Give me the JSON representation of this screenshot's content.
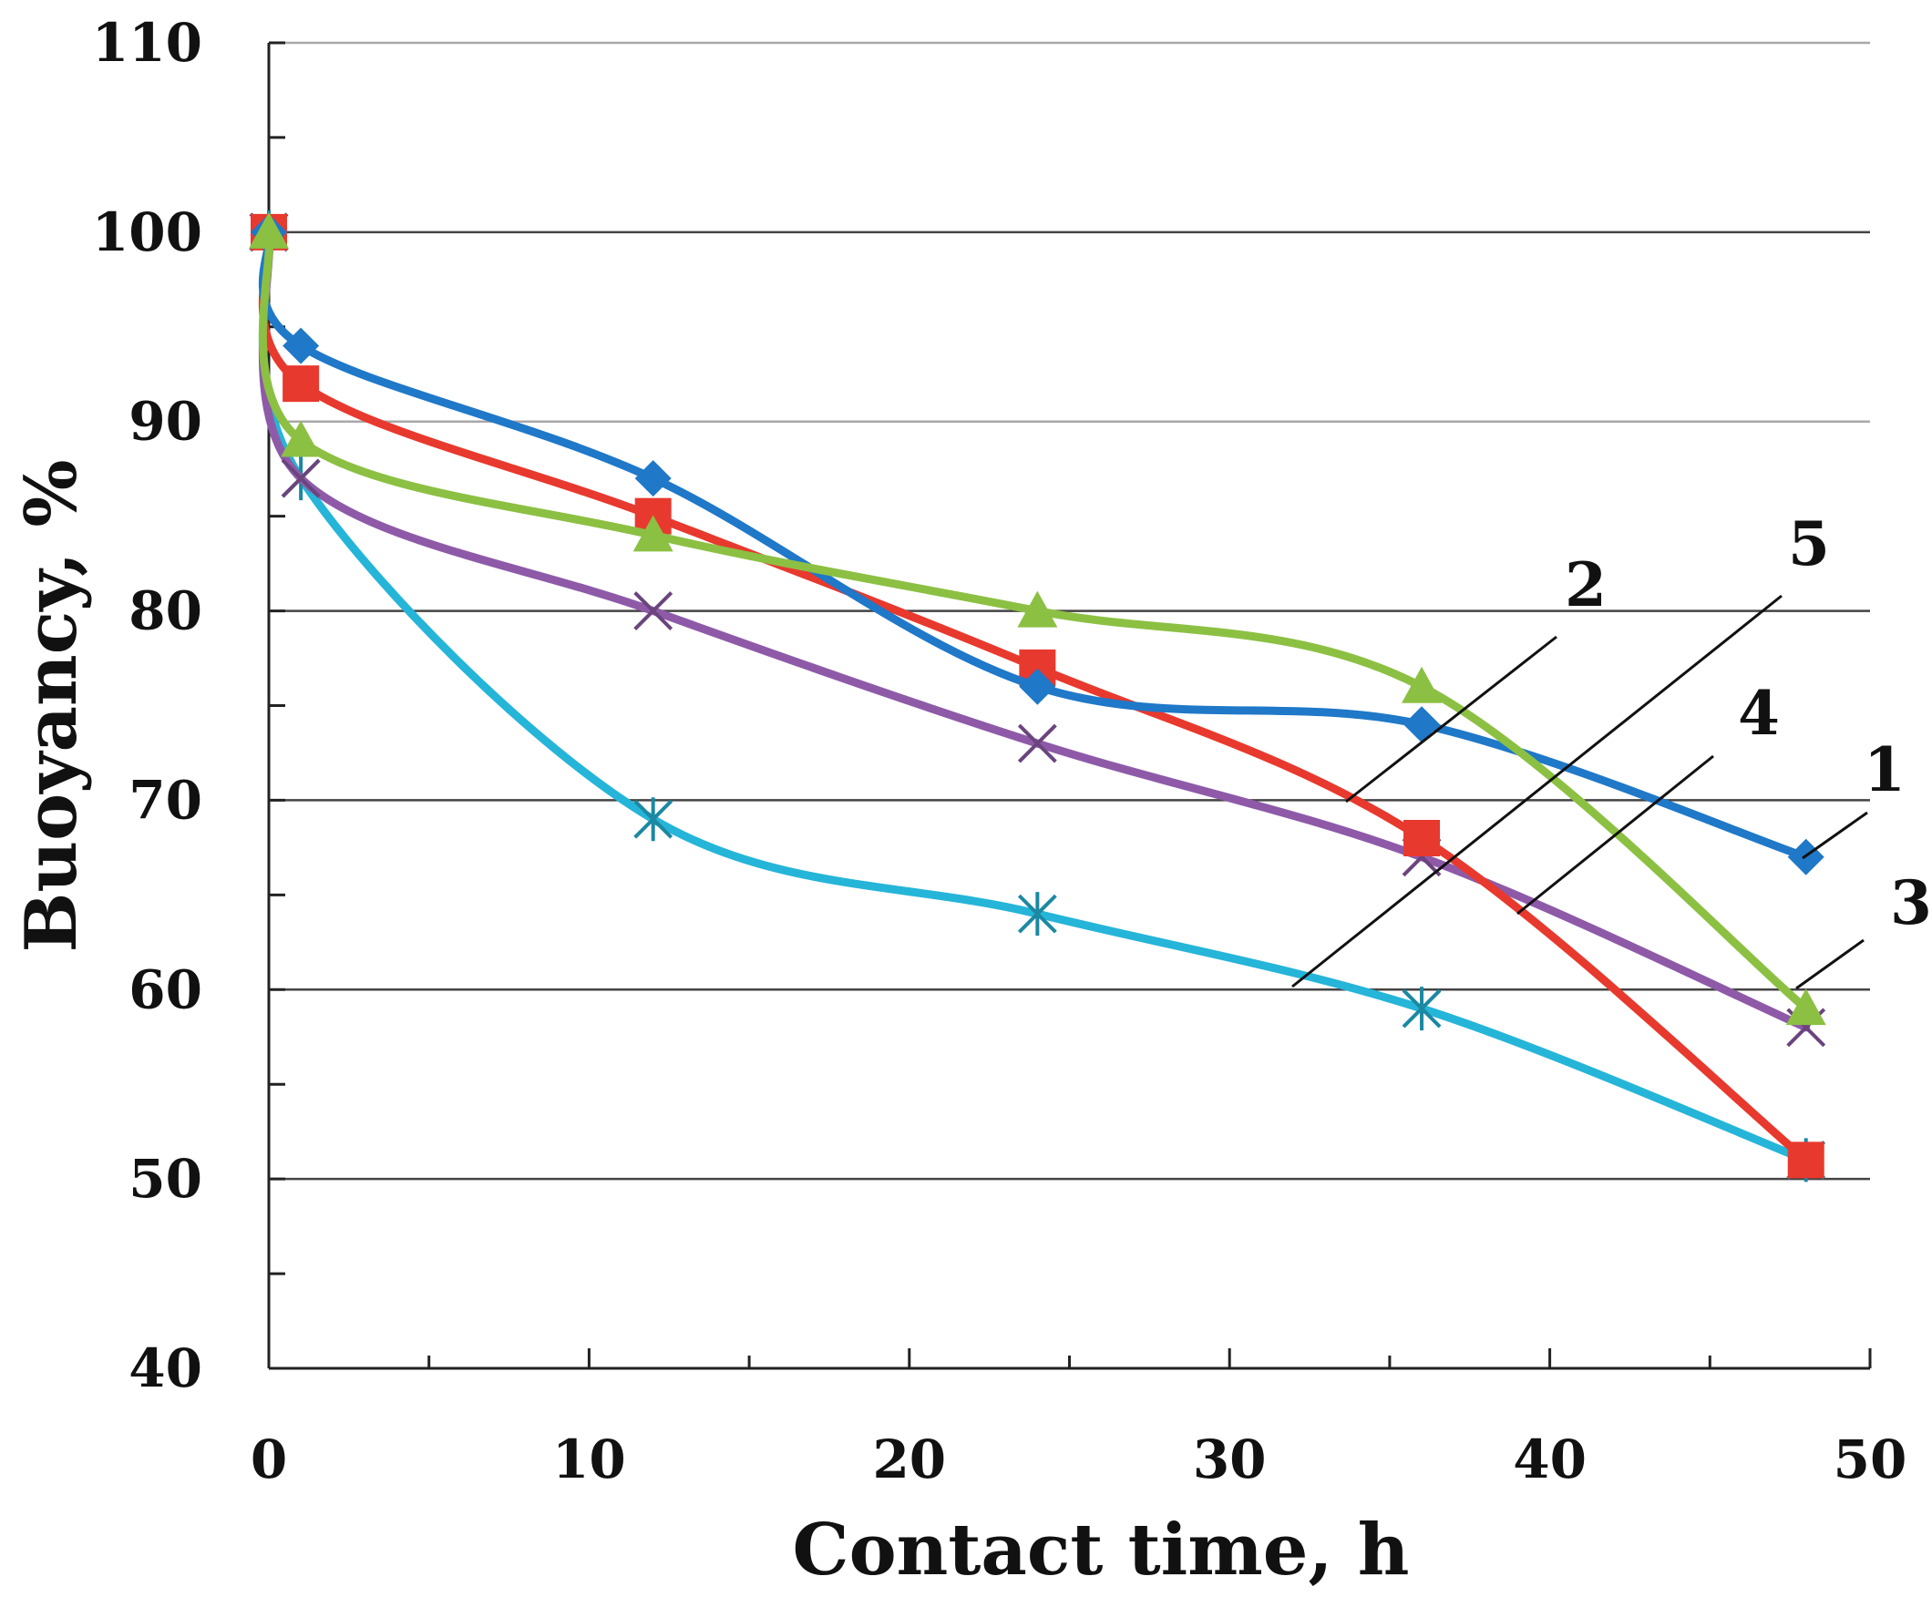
{
  "chart_data": {
    "type": "line",
    "title": "",
    "xlabel": "Contact time, h",
    "ylabel": "Buoyancy, %",
    "xlim": [
      0,
      50
    ],
    "ylim": [
      40,
      110
    ],
    "x_ticks": [
      "0",
      "10",
      "20",
      "30",
      "40",
      "50"
    ],
    "y_ticks": [
      "40",
      "50",
      "60",
      "70",
      "80",
      "90",
      "100",
      "110"
    ],
    "grid": "horizontal",
    "series": [
      {
        "name": "1",
        "color": "#1f78c8",
        "marker": "diamond",
        "x": [
          0,
          1,
          12,
          24,
          36,
          48
        ],
        "y": [
          100,
          94,
          87,
          76,
          74,
          67
        ]
      },
      {
        "name": "2",
        "color": "#e8392e",
        "marker": "square",
        "x": [
          0,
          1,
          12,
          24,
          36,
          48
        ],
        "y": [
          100,
          92,
          85,
          77,
          68,
          51
        ]
      },
      {
        "name": "3",
        "color": "#8cc043",
        "marker": "triangle",
        "x": [
          0,
          1,
          12,
          24,
          36,
          48
        ],
        "y": [
          100,
          89,
          84,
          80,
          76,
          59
        ]
      },
      {
        "name": "4",
        "color": "#8e5aa8",
        "marker": "x",
        "x": [
          0,
          1,
          12,
          24,
          36,
          48
        ],
        "y": [
          100,
          87,
          80,
          73,
          67,
          58
        ]
      },
      {
        "name": "5",
        "color": "#25b5d8",
        "marker": "asterisk",
        "x": [
          0,
          1,
          12,
          24,
          36,
          48
        ],
        "y": [
          100,
          87,
          69,
          64,
          59,
          51
        ]
      }
    ],
    "annotations": [
      {
        "text": "2",
        "series": "2"
      },
      {
        "text": "5",
        "series": "5"
      },
      {
        "text": "4",
        "series": "4"
      },
      {
        "text": "1",
        "series": "1"
      },
      {
        "text": "3",
        "series": "3"
      }
    ]
  }
}
